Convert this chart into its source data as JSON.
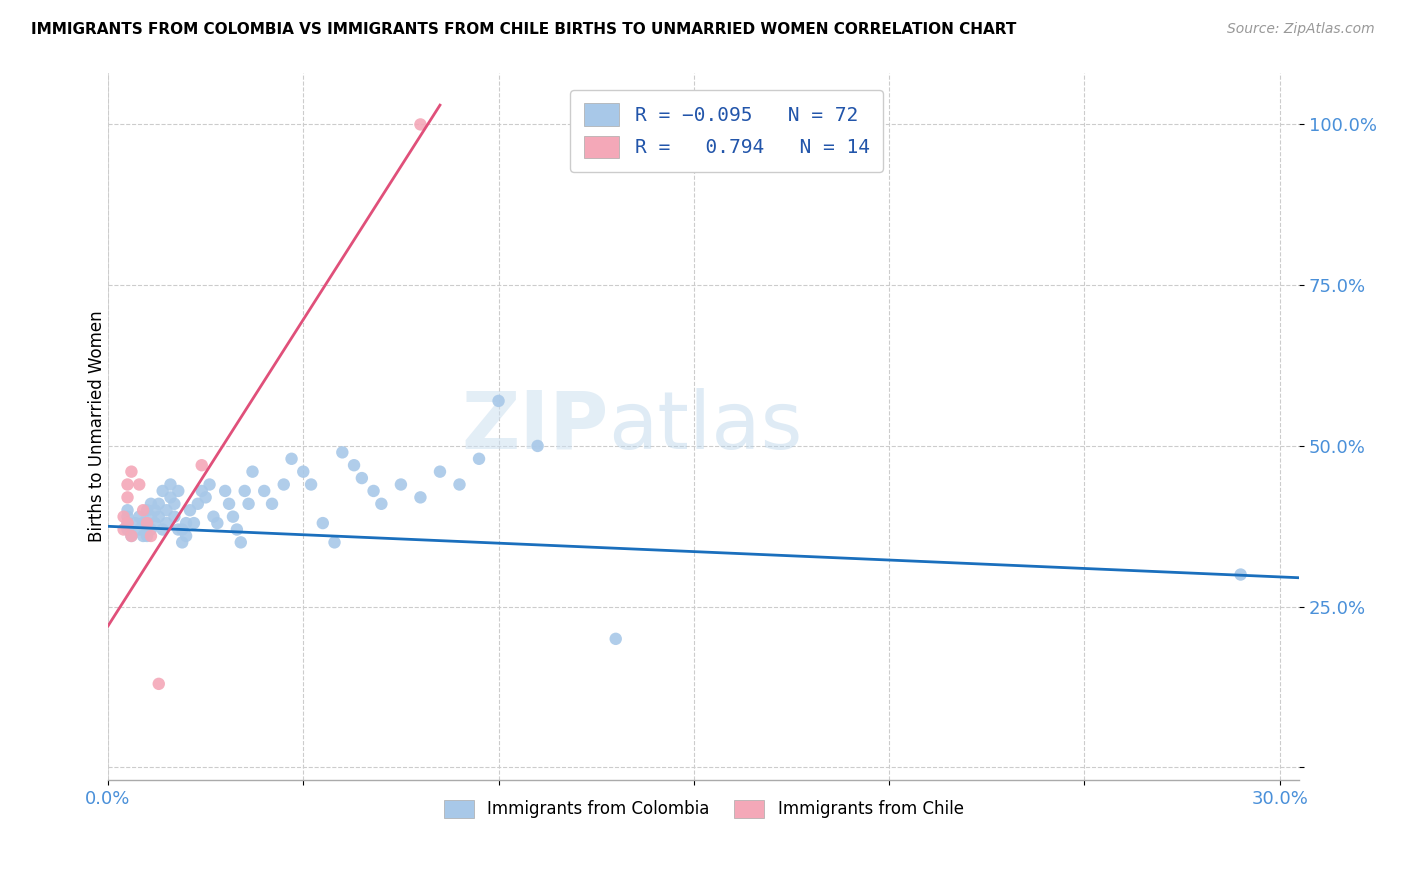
{
  "title": "IMMIGRANTS FROM COLOMBIA VS IMMIGRANTS FROM CHILE BIRTHS TO UNMARRIED WOMEN CORRELATION CHART",
  "source": "Source: ZipAtlas.com",
  "ylabel": "Births to Unmarried Women",
  "xlim": [
    0.0,
    0.305
  ],
  "ylim": [
    -0.02,
    1.08
  ],
  "xticks": [
    0.0,
    0.05,
    0.1,
    0.15,
    0.2,
    0.25,
    0.3
  ],
  "xticklabels": [
    "0.0%",
    "",
    "",
    "",
    "",
    "",
    "30.0%"
  ],
  "yticks": [
    0.0,
    0.25,
    0.5,
    0.75,
    1.0
  ],
  "yticklabels": [
    "",
    "25.0%",
    "50.0%",
    "75.0%",
    "100.0%"
  ],
  "colombia_color": "#a8c8e8",
  "chile_color": "#f4a8b8",
  "colombia_line_color": "#1a6fbd",
  "chile_line_color": "#e0507a",
  "colombia_R": -0.095,
  "colombia_N": 72,
  "chile_R": 0.794,
  "chile_N": 14,
  "watermark_zip": "ZIP",
  "watermark_atlas": "atlas",
  "colombia_line_x": [
    0.0,
    0.305
  ],
  "colombia_line_y": [
    0.375,
    0.295
  ],
  "chile_line_x": [
    0.0,
    0.085
  ],
  "chile_line_y": [
    0.22,
    1.03
  ],
  "colombia_points_x": [
    0.005,
    0.005,
    0.005,
    0.005,
    0.006,
    0.007,
    0.008,
    0.008,
    0.009,
    0.009,
    0.01,
    0.01,
    0.01,
    0.011,
    0.011,
    0.011,
    0.012,
    0.012,
    0.013,
    0.013,
    0.014,
    0.014,
    0.015,
    0.015,
    0.016,
    0.016,
    0.017,
    0.017,
    0.018,
    0.018,
    0.019,
    0.019,
    0.02,
    0.02,
    0.021,
    0.022,
    0.023,
    0.024,
    0.025,
    0.026,
    0.027,
    0.028,
    0.03,
    0.031,
    0.032,
    0.033,
    0.034,
    0.035,
    0.036,
    0.037,
    0.04,
    0.042,
    0.045,
    0.047,
    0.05,
    0.052,
    0.055,
    0.058,
    0.06,
    0.063,
    0.065,
    0.068,
    0.07,
    0.075,
    0.08,
    0.085,
    0.09,
    0.095,
    0.1,
    0.11,
    0.13,
    0.29
  ],
  "colombia_points_y": [
    0.37,
    0.39,
    0.4,
    0.38,
    0.36,
    0.38,
    0.37,
    0.39,
    0.36,
    0.38,
    0.4,
    0.38,
    0.36,
    0.37,
    0.39,
    0.41,
    0.38,
    0.4,
    0.39,
    0.41,
    0.37,
    0.43,
    0.38,
    0.4,
    0.42,
    0.44,
    0.39,
    0.41,
    0.37,
    0.43,
    0.35,
    0.37,
    0.36,
    0.38,
    0.4,
    0.38,
    0.41,
    0.43,
    0.42,
    0.44,
    0.39,
    0.38,
    0.43,
    0.41,
    0.39,
    0.37,
    0.35,
    0.43,
    0.41,
    0.46,
    0.43,
    0.41,
    0.44,
    0.48,
    0.46,
    0.44,
    0.38,
    0.35,
    0.49,
    0.47,
    0.45,
    0.43,
    0.41,
    0.44,
    0.42,
    0.46,
    0.44,
    0.48,
    0.57,
    0.5,
    0.2,
    0.3
  ],
  "chile_points_x": [
    0.004,
    0.004,
    0.005,
    0.005,
    0.005,
    0.006,
    0.006,
    0.008,
    0.009,
    0.01,
    0.011,
    0.013,
    0.024,
    0.08
  ],
  "chile_points_y": [
    0.37,
    0.39,
    0.42,
    0.44,
    0.38,
    0.46,
    0.36,
    0.44,
    0.4,
    0.38,
    0.36,
    0.13,
    0.47,
    1.0
  ]
}
